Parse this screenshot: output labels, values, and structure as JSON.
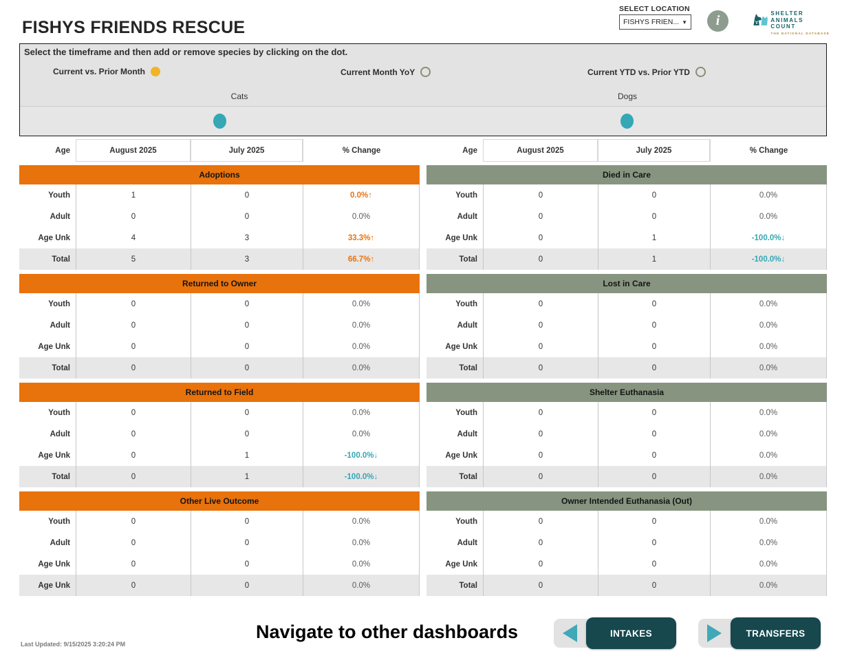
{
  "header": {
    "title": "FISHYS FRIENDS RESCUE",
    "select_location_label": "SELECT LOCATION",
    "location_value": "FISHYS FRIEN...",
    "logo": {
      "line1": "SHELTER",
      "line2": "ANIMALS",
      "line3": "COUNT",
      "tagline": "THE NATIONAL DATABASE"
    }
  },
  "controls": {
    "instruction": "Select the timeframe and then add or remove species by clicking on the dot.",
    "timeframes": [
      {
        "label": "Current vs. Prior Month",
        "selected": true
      },
      {
        "label": "Current Month YoY",
        "selected": false
      },
      {
        "label": "Current YTD vs. Prior YTD",
        "selected": false
      }
    ],
    "species": [
      {
        "label": "Cats"
      },
      {
        "label": "Dogs"
      }
    ]
  },
  "columns": [
    "Age",
    "August 2025",
    "July 2025",
    "% Change"
  ],
  "left_sections": [
    {
      "title": "Adoptions",
      "rows": [
        {
          "label": "Youth",
          "current": "1",
          "prior": "0",
          "change": "0.0%",
          "trend": "up",
          "total": false
        },
        {
          "label": "Adult",
          "current": "0",
          "prior": "0",
          "change": "0.0%",
          "trend": "flat",
          "total": false
        },
        {
          "label": "Age Unk",
          "current": "4",
          "prior": "3",
          "change": "33.3%",
          "trend": "up",
          "total": false
        },
        {
          "label": "Total",
          "current": "5",
          "prior": "3",
          "change": "66.7%",
          "trend": "up",
          "total": true
        }
      ]
    },
    {
      "title": "Returned to Owner",
      "rows": [
        {
          "label": "Youth",
          "current": "0",
          "prior": "0",
          "change": "0.0%",
          "trend": "flat",
          "total": false
        },
        {
          "label": "Adult",
          "current": "0",
          "prior": "0",
          "change": "0.0%",
          "trend": "flat",
          "total": false
        },
        {
          "label": "Age Unk",
          "current": "0",
          "prior": "0",
          "change": "0.0%",
          "trend": "flat",
          "total": false
        },
        {
          "label": "Total",
          "current": "0",
          "prior": "0",
          "change": "0.0%",
          "trend": "flat",
          "total": true
        }
      ]
    },
    {
      "title": "Returned to Field",
      "rows": [
        {
          "label": "Youth",
          "current": "0",
          "prior": "0",
          "change": "0.0%",
          "trend": "flat",
          "total": false
        },
        {
          "label": "Adult",
          "current": "0",
          "prior": "0",
          "change": "0.0%",
          "trend": "flat",
          "total": false
        },
        {
          "label": "Age Unk",
          "current": "0",
          "prior": "1",
          "change": "-100.0%",
          "trend": "down",
          "total": false
        },
        {
          "label": "Total",
          "current": "0",
          "prior": "1",
          "change": "-100.0%",
          "trend": "down",
          "total": true
        }
      ]
    },
    {
      "title": "Other Live Outcome",
      "rows": [
        {
          "label": "Youth",
          "current": "0",
          "prior": "0",
          "change": "0.0%",
          "trend": "flat",
          "total": false
        },
        {
          "label": "Adult",
          "current": "0",
          "prior": "0",
          "change": "0.0%",
          "trend": "flat",
          "total": false
        },
        {
          "label": "Age Unk",
          "current": "0",
          "prior": "0",
          "change": "0.0%",
          "trend": "flat",
          "total": false
        },
        {
          "label": "Age Unk",
          "current": "0",
          "prior": "0",
          "change": "0.0%",
          "trend": "flat",
          "total": true
        }
      ]
    }
  ],
  "right_sections": [
    {
      "title": "Died in Care",
      "rows": [
        {
          "label": "Youth",
          "current": "0",
          "prior": "0",
          "change": "0.0%",
          "trend": "flat",
          "total": false
        },
        {
          "label": "Adult",
          "current": "0",
          "prior": "0",
          "change": "0.0%",
          "trend": "flat",
          "total": false
        },
        {
          "label": "Age Unk",
          "current": "0",
          "prior": "1",
          "change": "-100.0%",
          "trend": "down",
          "total": false
        },
        {
          "label": "Total",
          "current": "0",
          "prior": "1",
          "change": "-100.0%",
          "trend": "down",
          "total": true
        }
      ]
    },
    {
      "title": "Lost in Care",
      "rows": [
        {
          "label": "Youth",
          "current": "0",
          "prior": "0",
          "change": "0.0%",
          "trend": "flat",
          "total": false
        },
        {
          "label": "Adult",
          "current": "0",
          "prior": "0",
          "change": "0.0%",
          "trend": "flat",
          "total": false
        },
        {
          "label": "Age Unk",
          "current": "0",
          "prior": "0",
          "change": "0.0%",
          "trend": "flat",
          "total": false
        },
        {
          "label": "Total",
          "current": "0",
          "prior": "0",
          "change": "0.0%",
          "trend": "flat",
          "total": true
        }
      ]
    },
    {
      "title": "Shelter Euthanasia",
      "rows": [
        {
          "label": "Youth",
          "current": "0",
          "prior": "0",
          "change": "0.0%",
          "trend": "flat",
          "total": false
        },
        {
          "label": "Adult",
          "current": "0",
          "prior": "0",
          "change": "0.0%",
          "trend": "flat",
          "total": false
        },
        {
          "label": "Age Unk",
          "current": "0",
          "prior": "0",
          "change": "0.0%",
          "trend": "flat",
          "total": false
        },
        {
          "label": "Total",
          "current": "0",
          "prior": "0",
          "change": "0.0%",
          "trend": "flat",
          "total": true
        }
      ]
    },
    {
      "title": "Owner Intended Euthanasia (Out)",
      "rows": [
        {
          "label": "Youth",
          "current": "0",
          "prior": "0",
          "change": "0.0%",
          "trend": "flat",
          "total": false
        },
        {
          "label": "Adult",
          "current": "0",
          "prior": "0",
          "change": "0.0%",
          "trend": "flat",
          "total": false
        },
        {
          "label": "Age Unk",
          "current": "0",
          "prior": "0",
          "change": "0.0%",
          "trend": "flat",
          "total": false
        },
        {
          "label": "Total",
          "current": "0",
          "prior": "0",
          "change": "0.0%",
          "trend": "flat",
          "total": true
        }
      ]
    }
  ],
  "footer": {
    "last_updated": "Last Updated: 9/15/2025 3:20:24 PM",
    "navigate_label": "Navigate to other dashboards",
    "intakes_label": "INTAKES",
    "transfers_label": "TRANSFERS"
  },
  "colors": {
    "accent_orange": "#e8720c",
    "accent_sage": "#879580",
    "teal_dot": "#35a7b5",
    "selected_yellow": "#f0b42a",
    "positive_change": "#e8730f",
    "negative_change": "#35a7b4",
    "button_dark_teal": "#16484e",
    "button_arrow_teal": "#3fa9b8"
  }
}
